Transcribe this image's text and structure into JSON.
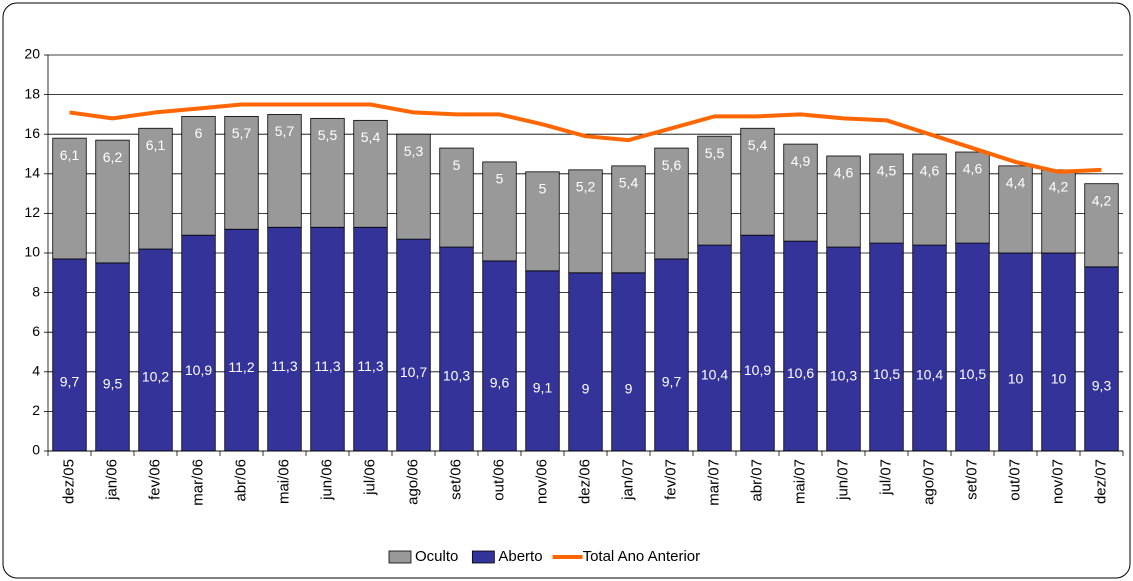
{
  "chart_data": {
    "type": "stacked_bar_line",
    "categories": [
      "dez/05",
      "jan/06",
      "fev/06",
      "mar/06",
      "abr/06",
      "mai/06",
      "jun/06",
      "jul/06",
      "ago/06",
      "set/06",
      "out/06",
      "nov/06",
      "dez/06",
      "jan/07",
      "fev/07",
      "mar/07",
      "abr/07",
      "mai/07",
      "jun/07",
      "jul/07",
      "ago/07",
      "set/07",
      "out/07",
      "nov/07",
      "dez/07"
    ],
    "series": [
      {
        "name": "Oculto",
        "color": "#999999",
        "kind": "bar",
        "values": [
          6.1,
          6.2,
          6.1,
          6,
          5.7,
          5.7,
          5.5,
          5.4,
          5.3,
          5,
          5,
          5,
          5.2,
          5.4,
          5.6,
          5.5,
          5.4,
          4.9,
          4.6,
          4.5,
          4.6,
          4.6,
          4.4,
          4.2,
          4.2
        ],
        "value_labels": [
          "6,1",
          "6,2",
          "6,1",
          "6",
          "5,7",
          "5,7",
          "5,5",
          "5,4",
          "5,3",
          "5",
          "5",
          "5",
          "5,2",
          "5,4",
          "5,6",
          "5,5",
          "5,4",
          "4,9",
          "4,6",
          "4,5",
          "4,6",
          "4,6",
          "4,4",
          "4,2",
          "4,2"
        ]
      },
      {
        "name": "Aberto",
        "color": "#333399",
        "kind": "bar",
        "values": [
          9.7,
          9.5,
          10.2,
          10.9,
          11.2,
          11.3,
          11.3,
          11.3,
          10.7,
          10.3,
          9.6,
          9.1,
          9,
          9,
          9.7,
          10.4,
          10.9,
          10.6,
          10.3,
          10.5,
          10.4,
          10.5,
          10,
          10,
          9.3
        ],
        "value_labels": [
          "9,7",
          "9,5",
          "10,2",
          "10,9",
          "11,2",
          "11,3",
          "11,3",
          "11,3",
          "10,7",
          "10,3",
          "9,6",
          "9,1",
          "9",
          "9",
          "9,7",
          "10,4",
          "10,9",
          "10,6",
          "10,3",
          "10,5",
          "10,4",
          "10,5",
          "10",
          "10",
          "9,3"
        ]
      },
      {
        "name": "Total Ano Anterior",
        "color": "#ff6600",
        "kind": "line",
        "values": [
          17.1,
          16.8,
          17.1,
          17.3,
          17.5,
          17.5,
          17.5,
          17.5,
          17.1,
          17.0,
          17.0,
          16.5,
          15.9,
          15.7,
          16.3,
          16.9,
          16.9,
          17.0,
          16.8,
          16.7,
          16.0,
          15.3,
          14.6,
          14.1,
          14.2
        ]
      }
    ],
    "ylim": [
      0,
      20
    ],
    "yticks": [
      0,
      2,
      4,
      6,
      8,
      10,
      12,
      14,
      16,
      18,
      20
    ],
    "grid": true,
    "legend": "bottom"
  }
}
